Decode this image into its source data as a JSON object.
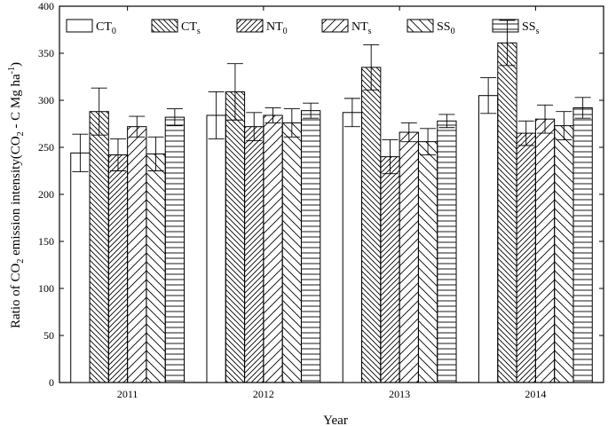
{
  "chart_data": {
    "type": "bar",
    "xlabel": "Year",
    "ylabel": "Ratio of CO2 emission intensity(CO2 - C Mg ha-1)",
    "ylabel_parts": {
      "a": "Ratio of CO",
      "a_sub": "2",
      "b": " emission intensity(CO",
      "b_sub": "2",
      "c": " - C Mg ha",
      "c_sup": "-1",
      "d": ")"
    },
    "ylim": [
      0,
      400
    ],
    "yticks": [
      0,
      50,
      100,
      150,
      200,
      250,
      300,
      350,
      400
    ],
    "categories": [
      "2011",
      "2012",
      "2013",
      "2014"
    ],
    "legend_position": "top",
    "series": [
      {
        "name": "CT0",
        "label_main": "CT",
        "label_sub": "0",
        "pattern": "none",
        "values": [
          244,
          284,
          287,
          305
        ],
        "errors": [
          20,
          25,
          15,
          19
        ]
      },
      {
        "name": "CTs",
        "label_main": "CT",
        "label_sub": "s",
        "pattern": "back-diagonal-dense",
        "values": [
          288,
          309,
          335,
          361
        ],
        "errors": [
          25,
          30,
          24,
          24
        ]
      },
      {
        "name": "NT0",
        "label_main": "NT",
        "label_sub": "0",
        "pattern": "forward-diagonal-dense",
        "values": [
          242,
          272,
          240,
          265
        ],
        "errors": [
          17,
          15,
          18,
          13
        ]
      },
      {
        "name": "NTs",
        "label_main": "NT",
        "label_sub": "s",
        "pattern": "forward-diagonal-sparse",
        "values": [
          272,
          284,
          266,
          280
        ],
        "errors": [
          11,
          8,
          10,
          15
        ]
      },
      {
        "name": "SS0",
        "label_main": "SS",
        "label_sub": "0",
        "pattern": "back-diagonal-sparse",
        "values": [
          243,
          276,
          256,
          273
        ],
        "errors": [
          18,
          15,
          14,
          15
        ]
      },
      {
        "name": "SSs",
        "label_main": "SS",
        "label_sub": "s",
        "pattern": "horizontal",
        "values": [
          282,
          289,
          278,
          292
        ],
        "errors": [
          9,
          8,
          7,
          11
        ]
      }
    ]
  }
}
